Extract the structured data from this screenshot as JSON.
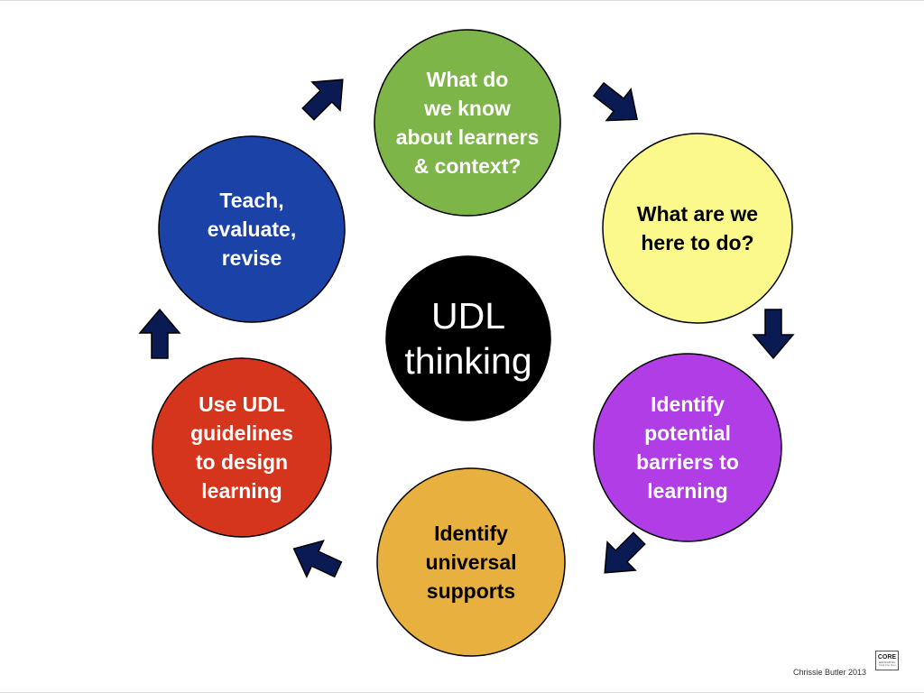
{
  "center": {
    "lines": [
      "UDL",
      "thinking"
    ],
    "fill": "#000000",
    "text_color": "#ffffff"
  },
  "steps": [
    {
      "id": "know-learners",
      "lines": [
        "What do",
        "we know",
        "about learners",
        "& context?"
      ],
      "fill": "#7db548",
      "text_color": "#ffffff"
    },
    {
      "id": "here-to-do",
      "lines": [
        "What are we",
        "here to do?"
      ],
      "fill": "#fbf98c",
      "text_color": "#000000"
    },
    {
      "id": "identify-barriers",
      "lines": [
        "Identify",
        "potential",
        "barriers to",
        "learning"
      ],
      "fill": "#b03de6",
      "text_color": "#ffffff"
    },
    {
      "id": "universal-supports",
      "lines": [
        "Identify",
        "universal",
        "supports"
      ],
      "fill": "#e8b03f",
      "text_color": "#000000"
    },
    {
      "id": "use-guidelines",
      "lines": [
        "Use UDL",
        "guidelines",
        "to design",
        "learning"
      ],
      "fill": "#d4351c",
      "text_color": "#ffffff"
    },
    {
      "id": "teach-evaluate",
      "lines": [
        "Teach,",
        "evaluate,",
        "revise"
      ],
      "fill": "#1b42a6",
      "text_color": "#ffffff"
    }
  ],
  "arrow_color": "#0a1a52",
  "credit": "Chrissie Butler 2013",
  "logo": {
    "main": "CORE",
    "sub": "EDUCATION",
    "sub2": "Tātai Aho Rau"
  }
}
